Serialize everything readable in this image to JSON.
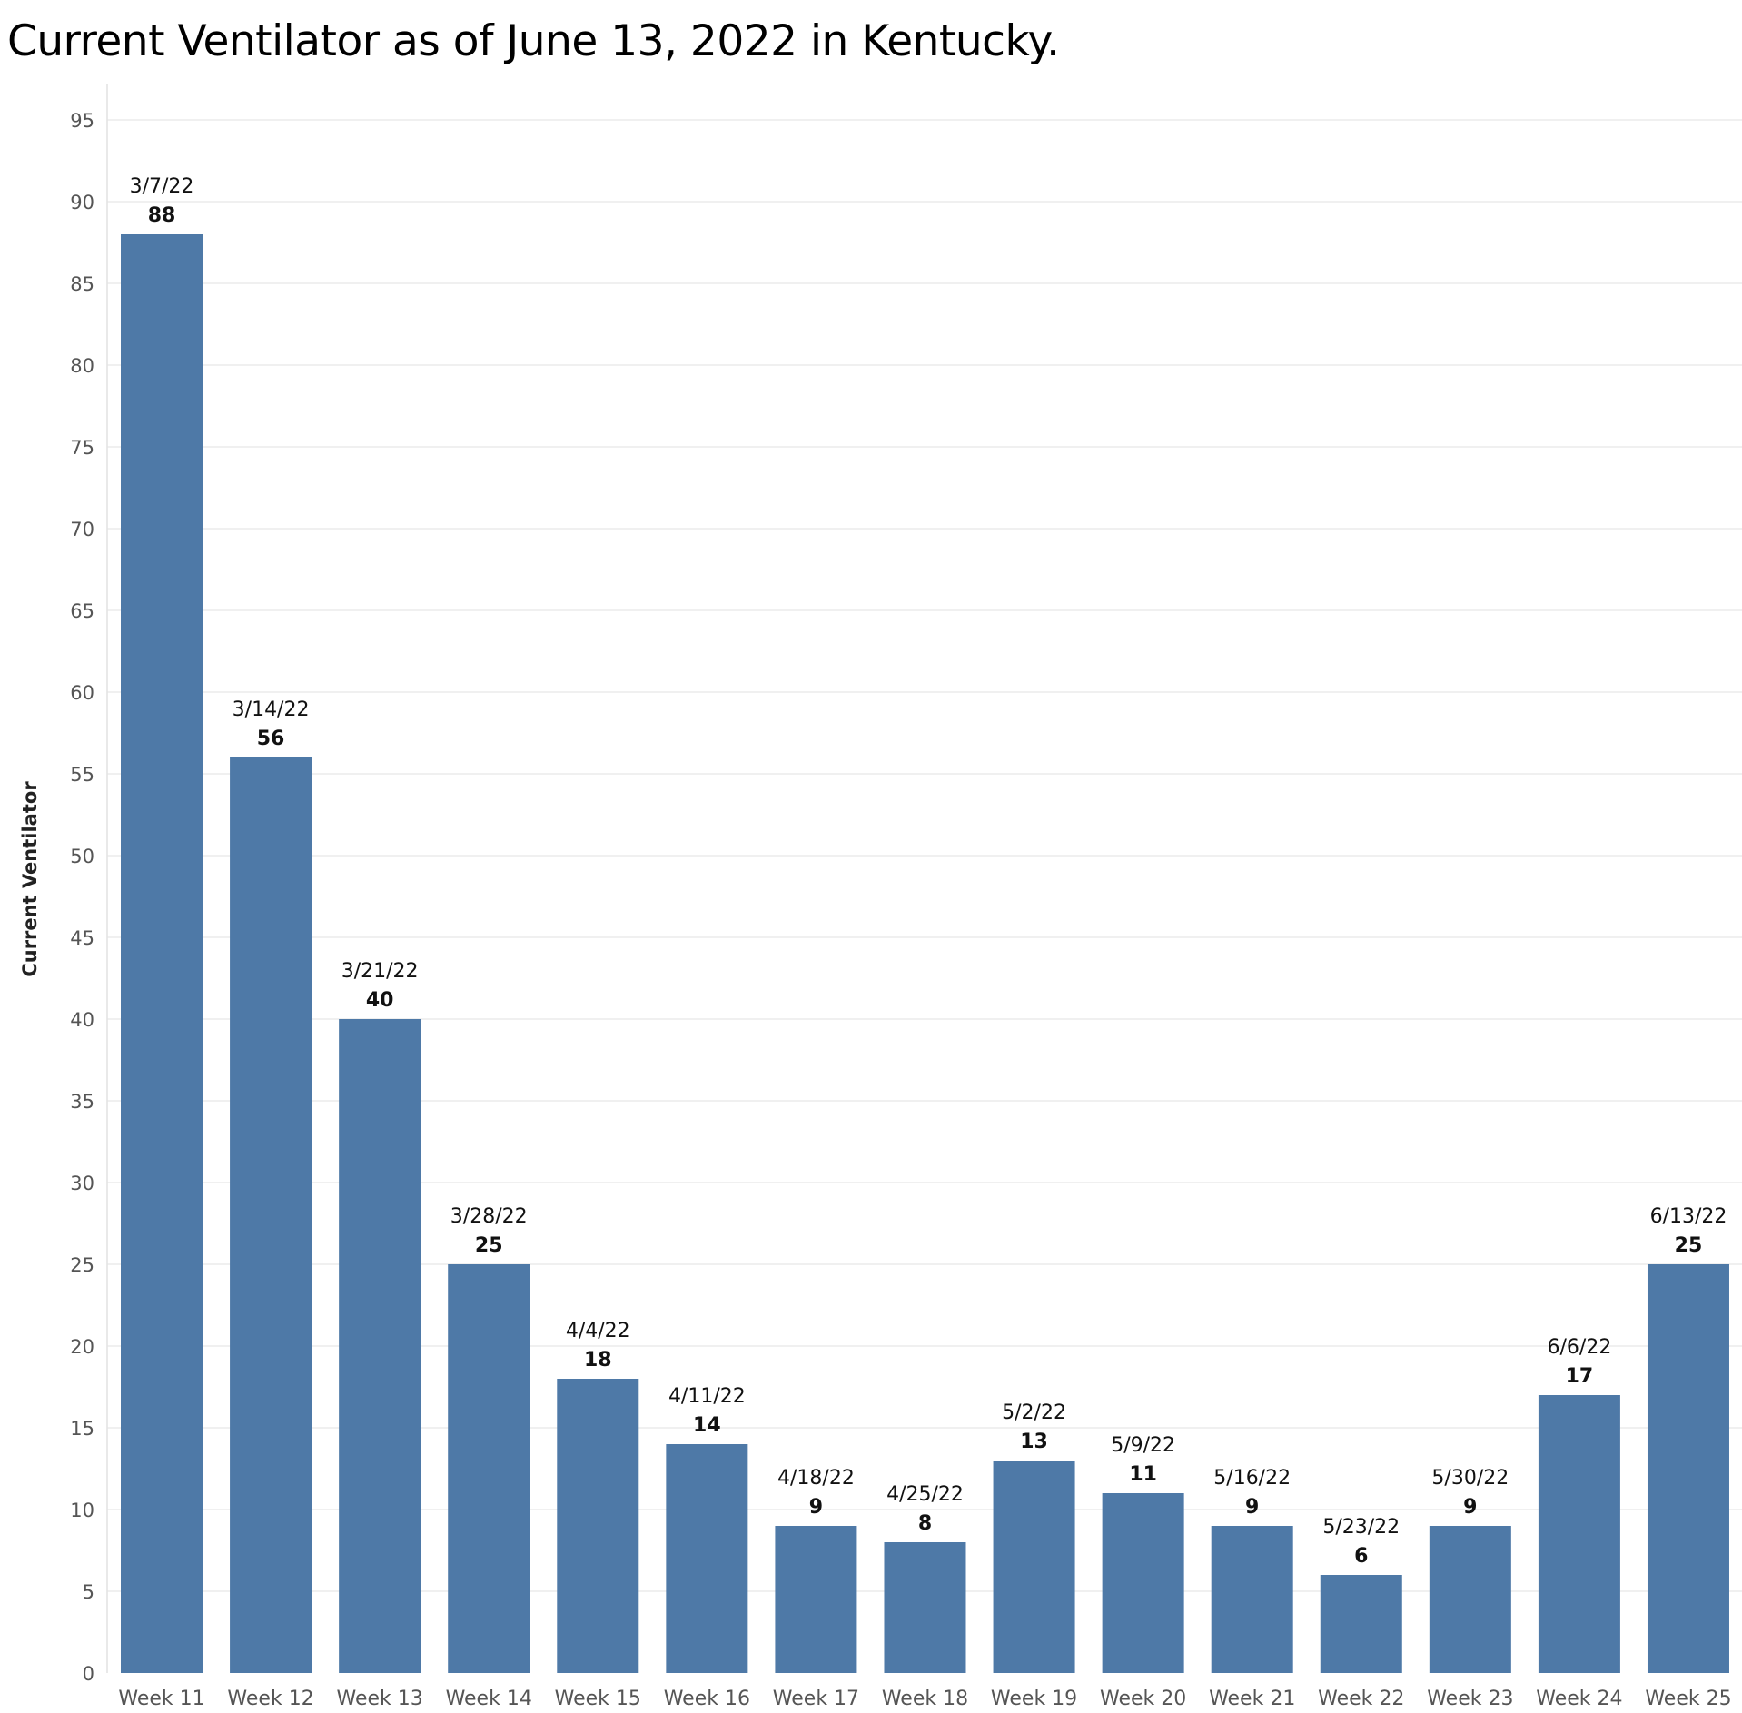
{
  "chart_data": {
    "type": "bar",
    "title": "Current Ventilator as of June 13, 2022 in Kentucky.",
    "ylabel": "Current Ventilator",
    "xlabel": "",
    "categories": [
      "Week 11",
      "Week 12",
      "Week 13",
      "Week 14",
      "Week 15",
      "Week 16",
      "Week 17",
      "Week 18",
      "Week 19",
      "Week 20",
      "Week 21",
      "Week 22",
      "Week 23",
      "Week 24",
      "Week 25"
    ],
    "dates": [
      "3/7/22",
      "3/14/22",
      "3/21/22",
      "3/28/22",
      "4/4/22",
      "4/11/22",
      "4/18/22",
      "4/25/22",
      "5/2/22",
      "5/9/22",
      "5/16/22",
      "5/23/22",
      "5/30/22",
      "6/6/22",
      "6/13/22"
    ],
    "values": [
      88,
      56,
      40,
      25,
      18,
      14,
      9,
      8,
      13,
      11,
      9,
      6,
      9,
      17,
      25
    ],
    "ylim": [
      0,
      95
    ],
    "yticks": [
      0,
      5,
      10,
      15,
      20,
      25,
      30,
      35,
      40,
      45,
      50,
      55,
      60,
      65,
      70,
      75,
      80,
      85,
      90,
      95
    ],
    "grid": true,
    "bar_color": "#4e79a7"
  }
}
